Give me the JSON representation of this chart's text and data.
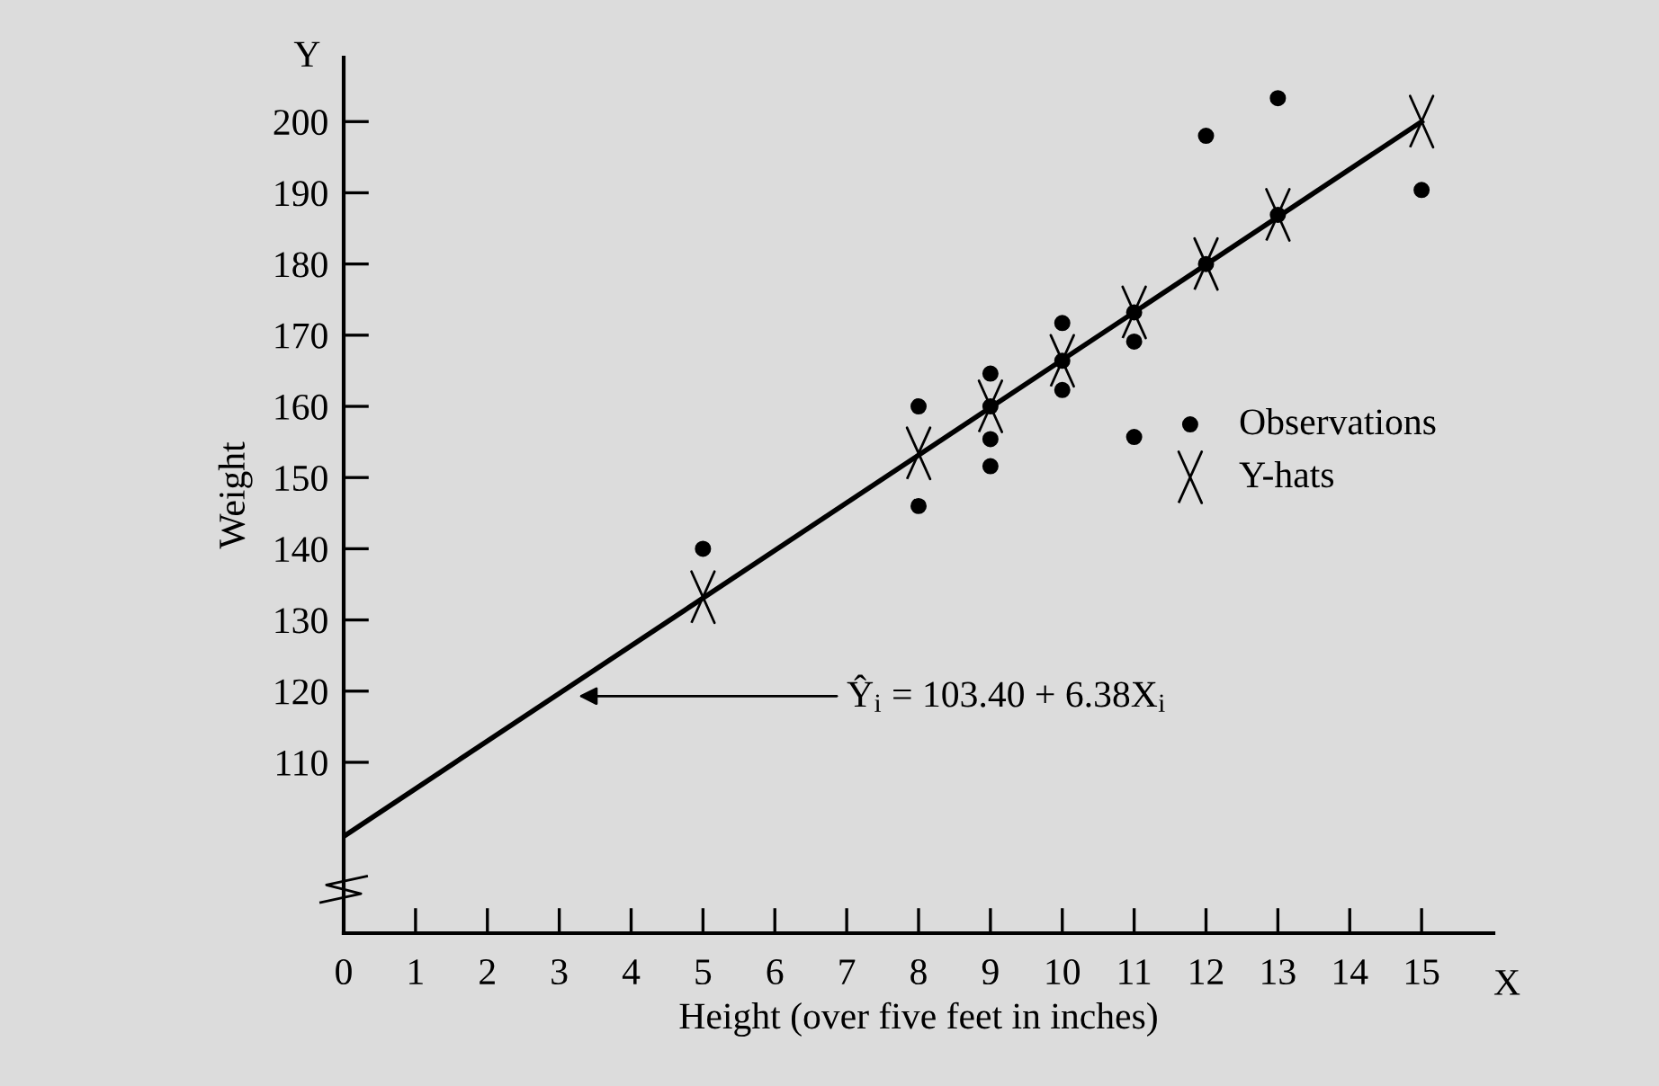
{
  "chart_data": {
    "type": "scatter",
    "xlabel": "Height (over five feet in inches)",
    "ylabel": "Weight",
    "xlim": [
      0,
      16
    ],
    "ylim": [
      86,
      209
    ],
    "xticks": [
      0,
      1,
      2,
      3,
      4,
      5,
      6,
      7,
      8,
      9,
      10,
      11,
      12,
      13,
      14,
      15
    ],
    "yticks": [
      110,
      120,
      130,
      140,
      150,
      160,
      170,
      180,
      190,
      200
    ],
    "grid": false,
    "legend": "right",
    "series": [
      {
        "name": "Observations",
        "marker": "circle",
        "color": "#000000",
        "x": [
          5,
          8,
          8,
          9,
          9,
          9,
          9,
          10,
          10,
          10,
          11,
          11,
          11,
          12,
          12,
          13,
          13,
          15
        ],
        "values": [
          140,
          160,
          146,
          164.6,
          160,
          155.4,
          151.6,
          171.7,
          166.4,
          162.3,
          173.2,
          169.1,
          155.7,
          198,
          180,
          203.3,
          186.9,
          190.4
        ]
      },
      {
        "name": "Y-hats",
        "marker": "cross",
        "color": "#000000",
        "x": [
          5,
          8,
          9,
          10,
          11,
          12,
          13,
          15
        ],
        "values": [
          133.2,
          153.4,
          160,
          166.4,
          173.2,
          180,
          186.9,
          200
        ]
      },
      {
        "type": "line",
        "marker": "none",
        "line_style": "solid",
        "color": "#000000",
        "x": [
          0,
          15
        ],
        "values": [
          99.6,
          200
        ]
      }
    ],
    "annotations": [
      {
        "text": "Ŷ$_{i}$ = 103.40 + 6.38X$_{i}$",
        "x": 3.2,
        "y": 119.3
      },
      "Y",
      "X"
    ]
  }
}
